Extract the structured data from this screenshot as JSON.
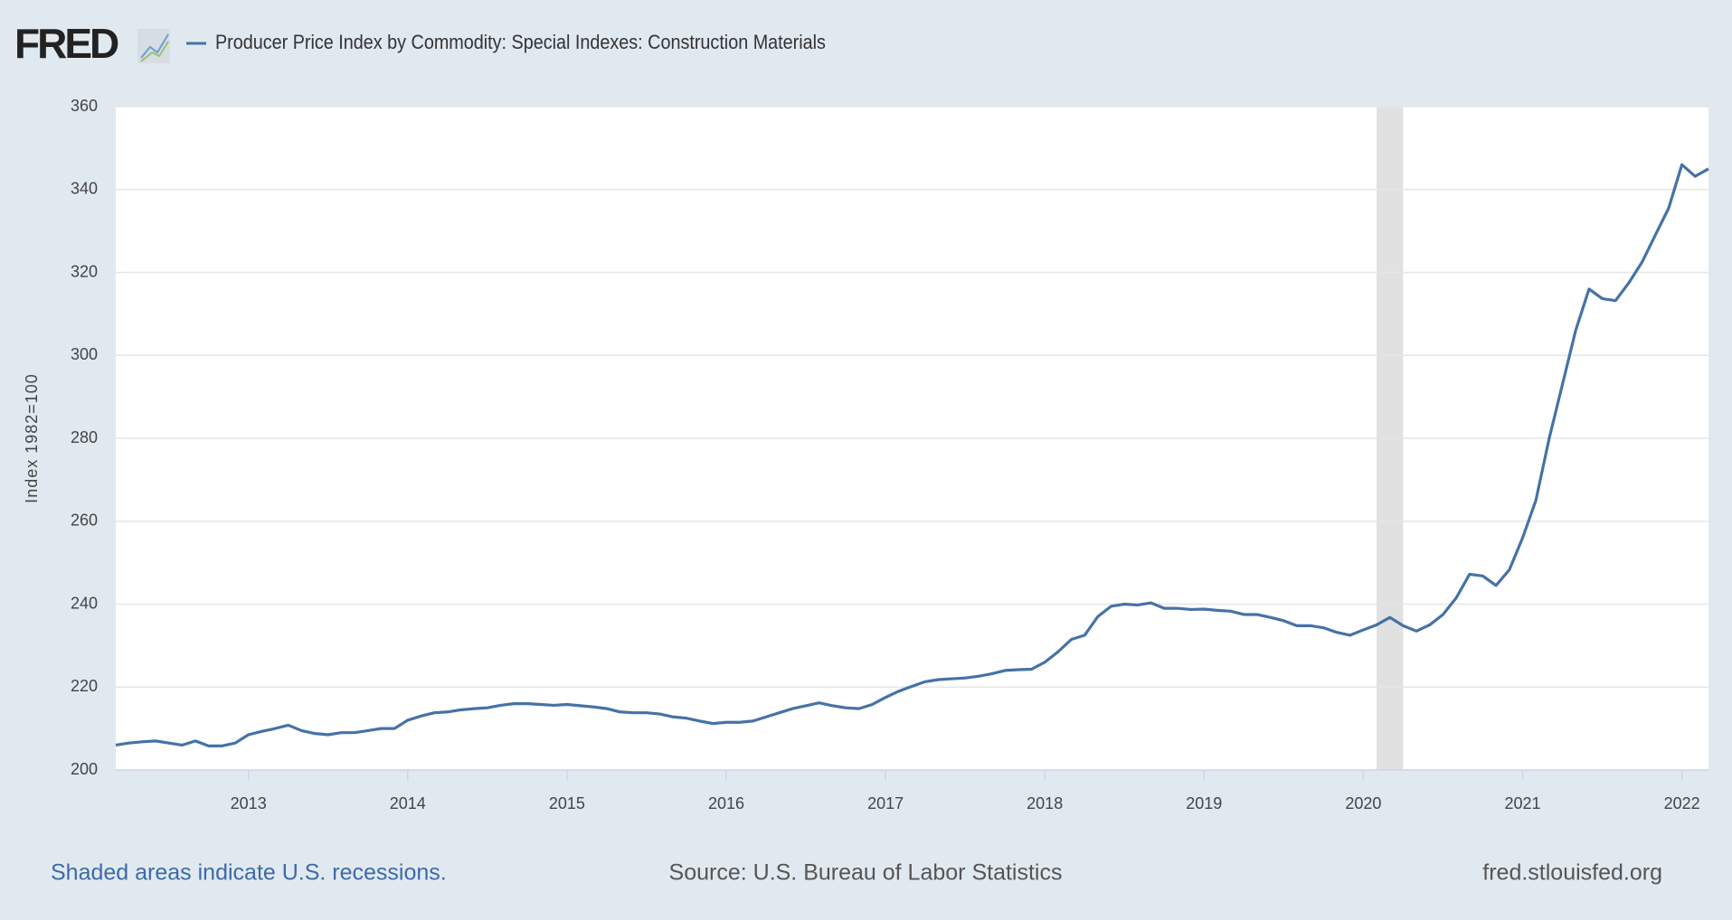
{
  "chart_data": {
    "type": "line",
    "logo": "FRED",
    "y_label": "Index 1982=100",
    "note": "Shaded areas indicate U.S. recessions.",
    "source": "Source: U.S. Bureau of Labor Statistics",
    "credit": "fred.stlouisfed.org",
    "x": [
      2012.167,
      2012.25,
      2012.333,
      2012.417,
      2012.5,
      2012.583,
      2012.667,
      2012.75,
      2012.833,
      2012.917,
      2013,
      2013.083,
      2013.167,
      2013.25,
      2013.333,
      2013.417,
      2013.5,
      2013.583,
      2013.667,
      2013.75,
      2013.833,
      2013.917,
      2014,
      2014.083,
      2014.167,
      2014.25,
      2014.333,
      2014.417,
      2014.5,
      2014.583,
      2014.667,
      2014.75,
      2014.833,
      2014.917,
      2015,
      2015.083,
      2015.167,
      2015.25,
      2015.333,
      2015.417,
      2015.5,
      2015.583,
      2015.667,
      2015.75,
      2015.833,
      2015.917,
      2016,
      2016.083,
      2016.167,
      2016.25,
      2016.333,
      2016.417,
      2016.5,
      2016.583,
      2016.667,
      2016.75,
      2016.833,
      2016.917,
      2017,
      2017.083,
      2017.167,
      2017.25,
      2017.333,
      2017.417,
      2017.5,
      2017.583,
      2017.667,
      2017.75,
      2017.833,
      2017.917,
      2018,
      2018.083,
      2018.167,
      2018.25,
      2018.333,
      2018.417,
      2018.5,
      2018.583,
      2018.667,
      2018.75,
      2018.833,
      2018.917,
      2019,
      2019.083,
      2019.167,
      2019.25,
      2019.333,
      2019.417,
      2019.5,
      2019.583,
      2019.667,
      2019.75,
      2019.833,
      2019.917,
      2020,
      2020.083,
      2020.167,
      2020.25,
      2020.333,
      2020.417,
      2020.5,
      2020.583,
      2020.667,
      2020.75,
      2020.833,
      2020.917,
      2021,
      2021.083,
      2021.167,
      2021.25,
      2021.333,
      2021.417,
      2021.5,
      2021.583,
      2021.667,
      2021.75,
      2021.833,
      2021.917,
      2022,
      2022.083,
      2022.167
    ],
    "series": [
      {
        "name": "Producer Price Index by Commodity: Special Indexes: Construction Materials",
        "color": "#4572a7",
        "values": [
          206,
          206.5,
          206.8,
          207,
          206.5,
          206,
          207,
          205.8,
          205.8,
          206.5,
          208.5,
          209.3,
          210,
          210.8,
          209.5,
          208.8,
          208.5,
          209,
          209,
          209.5,
          210,
          210,
          212,
          213,
          213.8,
          214,
          214.5,
          214.8,
          215,
          215.6,
          216,
          216,
          215.8,
          215.6,
          215.8,
          215.5,
          215.2,
          214.8,
          214,
          213.8,
          213.8,
          213.5,
          212.8,
          212.5,
          211.8,
          211.2,
          211.5,
          211.5,
          211.8,
          212.8,
          213.8,
          214.8,
          215.5,
          216.2,
          215.5,
          215,
          214.8,
          215.8,
          217.5,
          219,
          220.2,
          221.3,
          221.8,
          222,
          222.2,
          222.6,
          223.2,
          224,
          224.2,
          224.3,
          226,
          228.5,
          231.5,
          232.5,
          237,
          239.5,
          240,
          239.8,
          240.3,
          239,
          239,
          238.7,
          238.8,
          238.5,
          238.3,
          237.5,
          237.5,
          236.8,
          236,
          234.8,
          234.8,
          234.3,
          233.2,
          232.5,
          233.8,
          235,
          236.8,
          234.8,
          233.5,
          235,
          237.5,
          241.5,
          247.2,
          246.8,
          244.5,
          248.3,
          256,
          265,
          280,
          293,
          306,
          316,
          313.7,
          313.2,
          317.5,
          322.5,
          329,
          335.5,
          346,
          343.2,
          345
        ]
      }
    ],
    "recessions": [
      [
        2020.083,
        2020.25
      ]
    ],
    "xlim": [
      2012.167,
      2022.167
    ],
    "xticks": [
      2013,
      2014,
      2015,
      2016,
      2017,
      2018,
      2019,
      2020,
      2021,
      2022
    ],
    "ylim": [
      200,
      360
    ],
    "yticks": [
      200,
      220,
      240,
      260,
      280,
      300,
      320,
      340,
      360
    ],
    "grid": true
  }
}
